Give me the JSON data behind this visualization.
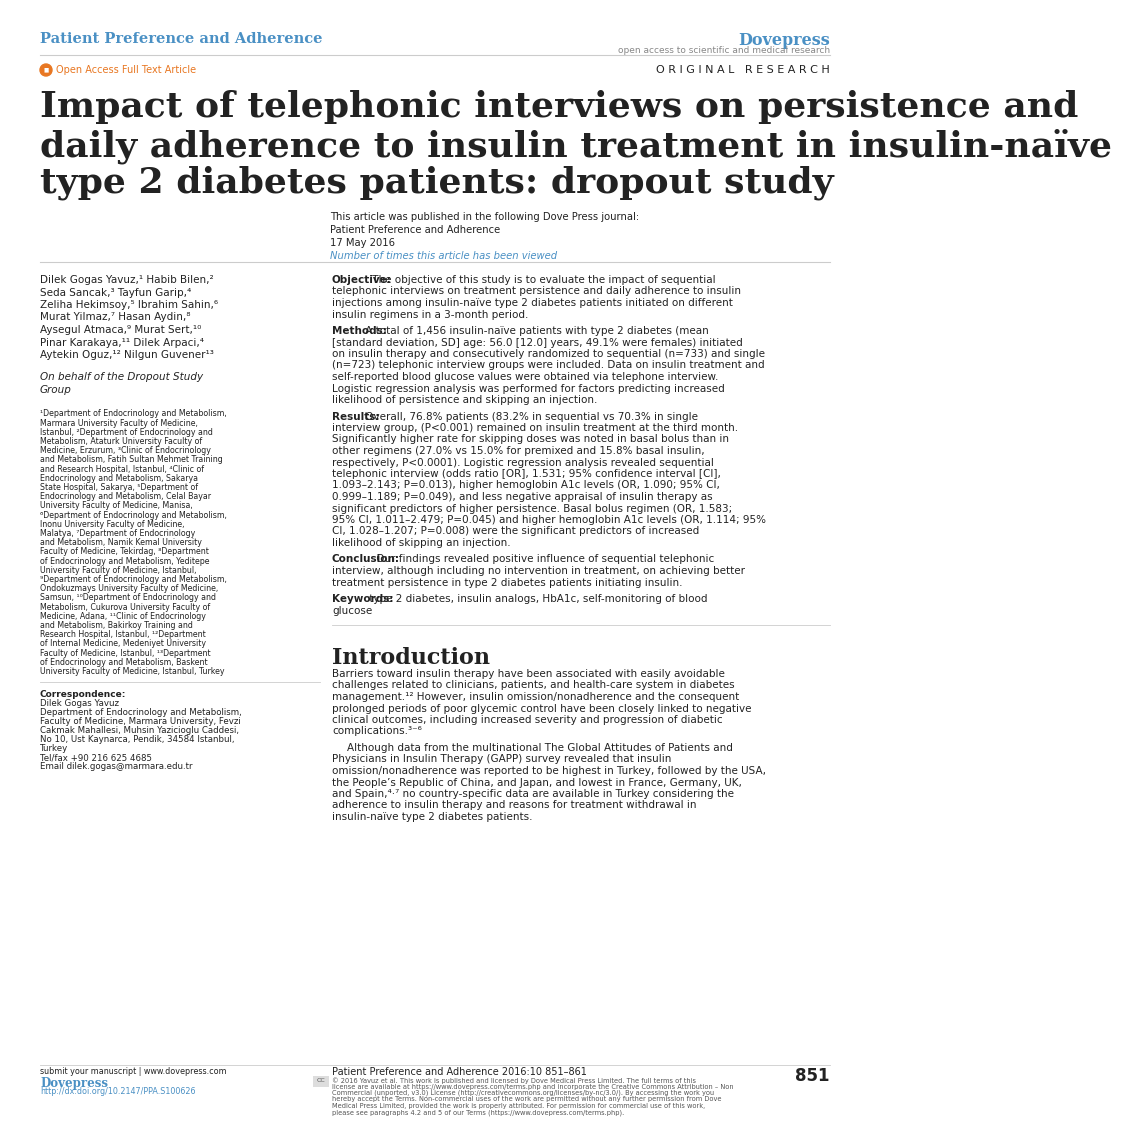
{
  "bg_color": "#ffffff",
  "header_journal": "Patient Preference and Adherence",
  "header_journal_color": "#4a90c4",
  "header_dovepress": "Dovepress",
  "header_dove_color": "#4a90c4",
  "header_dove_sub": "open access to scientific and medical research",
  "header_dove_sub_color": "#888888",
  "open_access_text": "Open Access Full Text Article",
  "open_access_color": "#e87722",
  "original_research": "O R I G I N A L   R E S E A R C H",
  "main_title_line1": "Impact of telephonic interviews on persistence and",
  "main_title_line2": "daily adherence to insulin treatment in insulin-naïve",
  "main_title_line3": "type 2 diabetes patients: dropout study",
  "article_note_line1": "This article was published in the following Dove Press journal:",
  "article_note_line2": "Patient Preference and Adherence",
  "article_note_line3": "17 May 2016",
  "article_note_line4": "Number of times this article has been viewed",
  "authors": "Dilek Gogas Yavuz,¹ Habib Bilen,²\nSeda Sancak,³ Tayfun Garip,⁴\nZeliha Hekimsoy,⁵ Ibrahim Sahin,⁶\nMurat Yilmaz,⁷ Hasan Aydin,⁸\nAysegul Atmaca,⁹ Murat Sert,¹⁰\nPinar Karakaya,¹¹ Dilek Arpaci,⁴\nAytekin Oguz,¹² Nilgun Guvener¹³",
  "behalf": "On behalf of the Dropout Study\nGroup",
  "affiliations": "¹Department of Endocrinology and Metabolism,\nMarmara University Faculty of Medicine,\nIstanbul, ²Department of Endocrinology and\nMetabolism, Ataturk University Faculty of\nMedicine, Erzurum, ³Clinic of Endocrinology\nand Metabolism, Fatih Sultan Mehmet Training\nand Research Hospital, Istanbul, ⁴Clinic of\nEndocrinology and Metabolism, Sakarya\nState Hospital, Sakarya, ⁵Department of\nEndocrinology and Metabolism, Celal Bayar\nUniversity Faculty of Medicine, Manisa,\n⁶Department of Endocrinology and Metabolism,\nInonu University Faculty of Medicine,\nMalatya, ⁷Department of Endocrinology\nand Metabolism, Namik Kemal University\nFaculty of Medicine, Tekirdag, ⁸Department\nof Endocrinology and Metabolism, Yeditepe\nUniversity Faculty of Medicine, Istanbul,\n⁹Department of Endocrinology and Metabolism,\nOndokuzmays University Faculty of Medicine,\nSamsun, ¹⁰Department of Endocrinology and\nMetabolism, Cukurova University Faculty of\nMedicine, Adana, ¹¹Clinic of Endocrinology\nand Metabolism, Bakirkoy Training and\nResearch Hospital, Istanbul, ¹²Department\nof Internal Medicine, Medeniyet University\nFaculty of Medicine, Istanbul, ¹³Department\nof Endocrinology and Metabolism, Baskent\nUniversity Faculty of Medicine, Istanbul, Turkey",
  "correspondence_label": "Correspondence:",
  "correspondence_text": "Dilek Gogas Yavuz\nDepartment of Endocrinology and Metabolism,\nFaculty of Medicine, Marmara University, Fevzi\nCakmak Mahallesi, Muhsin Yazicioglu Caddesi,\nNo 10, Ust Kaynarca, Pendik, 34584 Istanbul,\nTurkey\nTel/fax +90 216 625 4685\nEmail dilek.gogas@marmara.edu.tr",
  "doi_text": "http://dx.doi.org/10.2147/PPA.S100626",
  "submit_text": "submit your manuscript | www.dovepress.com",
  "dovepress_footer": "Dovepress",
  "objective_bold": "Objective:",
  "objective_text": " The objective of this study is to evaluate the impact of sequential telephonic interviews on treatment persistence and daily adherence to insulin injections among insulin-naïve type 2 diabetes patients initiated on different insulin regimens in a 3-month period.",
  "methods_bold": "Methods:",
  "methods_text": " A total of 1,456 insulin-naïve patients with type 2 diabetes (mean [standard deviation, SD] age: 56.0 [12.0] years, 49.1% were females) initiated on insulin therapy and consecutively randomized to sequential (n=733) and single (n=723) telephonic interview groups were included. Data on insulin treatment and self-reported blood glucose values were obtained via telephone interview. Logistic regression analysis was performed for factors predicting increased likelihood of persistence and skipping an injection.",
  "results_bold": "Results:",
  "results_text": " Overall, 76.8% patients (83.2% in sequential vs 70.3% in single interview group, (P<0.001) remained on insulin treatment at the third month. Significantly higher rate for skipping doses was noted in basal bolus than in other regimens (27.0% vs 15.0% for premixed and 15.8% basal insulin, respectively, P<0.0001). Logistic regression analysis revealed sequential telephonic interview (odds ratio [OR], 1.531; 95% confidence interval [CI], 1.093–2.143; P=0.013), higher hemoglobin A1c levels (OR, 1.090; 95% CI, 0.999–1.189; P=0.049), and less negative appraisal of insulin therapy as significant predictors of higher persistence. Basal bolus regimen (OR, 1.583; 95% CI, 1.011–2.479; P=0.045) and higher hemoglobin A1c levels (OR, 1.114; 95% CI, 1.028–1.207; P=0.008) were the significant predictors of increased likelihood of skipping an injection.",
  "conclusion_bold": "Conclusion:",
  "conclusion_text": " Our findings revealed positive influence of sequential telephonic interview, although including no intervention in treatment, on achieving better treatment persistence in type 2 diabetes patients initiating insulin.",
  "keywords_bold": "Keywords:",
  "keywords_text": " type 2 diabetes, insulin analogs, HbA1c, self-monitoring of blood glucose",
  "introduction_title": "Introduction",
  "intro_para1": "Barriers toward insulin therapy have been associated with easily avoidable challenges related to clinicians, patients, and health-care system in diabetes management.¹² However, insulin omission/nonadherence and the consequent prolonged periods of poor glycemic control have been closely linked to negative clinical outcomes, including increased severity and progression of diabetic complications.³⁻⁶",
  "intro_para2": "Although data from the multinational The Global Attitudes of Patients and Physicians in Insulin Therapy (GAPP) survey revealed that insulin omission/nonadherence was reported to be highest in Turkey, followed by the USA, the People’s Republic of China, and Japan, and lowest in France, Germany, UK, and Spain,⁴·⁷ no country-specific data are available in Turkey considering the adherence to insulin therapy and reasons for treatment withdrawal in insulin-naïve type 2 diabetes patients.",
  "footer_journal": "Patient Preference and Adherence 2016:10 851–861",
  "footer_page": "851",
  "footer_license": "© 2016 Yavuz et al. This work is published and licensed by Dove Medical Press Limited. The full terms of this license are available at https://www.dovepress.com/terms.php and incorporate the Creative Commons Attribution – Non Commercial (unported, v3.0) License (http://creativecommons.org/licenses/by-nc/3.0/). By accessing the work you hereby accept the Terms. Non-commercial uses of the work are permitted without any further permission from Dove Medical Press Limited, provided the work is properly attributed. For permission for commercial use of this work, please see paragraphs 4.2 and 5 of our Terms (https://www.dovepress.com/terms.php).",
  "header_line_color": "#cccccc",
  "section_divider_color": "#cccccc",
  "footer_line_color": "#cccccc",
  "text_color": "#222222",
  "link_color": "#4a90c4"
}
